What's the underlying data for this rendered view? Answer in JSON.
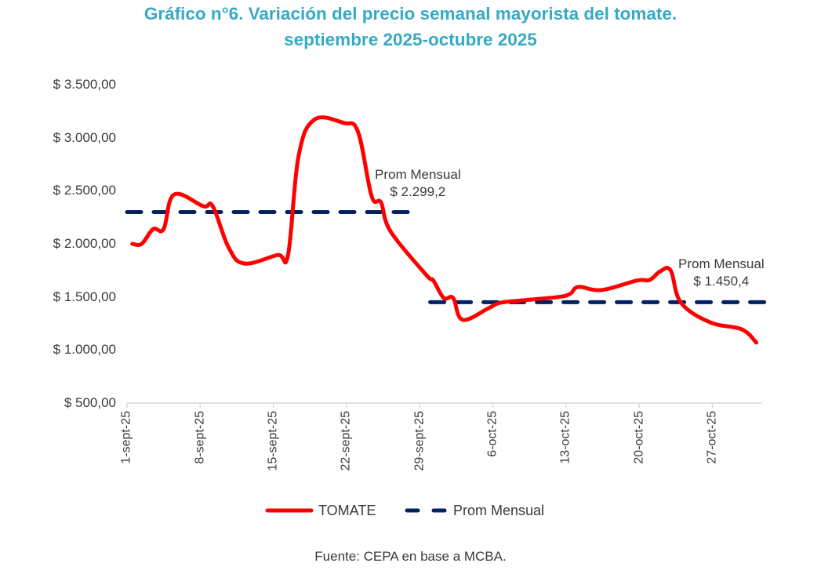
{
  "header": {
    "title_line1": "Gráfico n°6. Variación del precio semanal mayorista del tomate.",
    "title_line2": "septiembre 2025-octubre 2025"
  },
  "colors": {
    "title": "#36a9c6",
    "tomate": "#ff0000",
    "prom": "#002060",
    "axis": "#d9d9d9",
    "text": "#3a3a3a"
  },
  "chart_data": {
    "type": "line",
    "title": "Gráfico n°6. Variación del precio semanal mayorista del tomate. septiembre 2025-octubre 2025",
    "xlabel": "",
    "ylabel": "",
    "ylim": [
      500,
      3500
    ],
    "yticks": [
      3500,
      3000,
      2500,
      2000,
      1500,
      1000,
      500
    ],
    "ytick_labels": [
      "$ 3.500,00",
      "$ 3.000,00",
      "$ 2.500,00",
      "$ 2.000,00",
      "$ 1.500,00",
      "$ 1.000,00",
      "$ 500,00"
    ],
    "x_day_range": [
      1,
      62
    ],
    "xticks_day": [
      1,
      8,
      15,
      22,
      29,
      36,
      43,
      50,
      57
    ],
    "xtick_labels": [
      "1-sept-25",
      "8-sept-25",
      "15-sept-25",
      "22-sept-25",
      "29-sept-25",
      "6-oct-25",
      "13-oct-25",
      "20-oct-25",
      "27-oct-25"
    ],
    "grid": false,
    "legend_position": "bottom",
    "series": [
      {
        "name": "TOMATE",
        "style": "solid",
        "x_day": [
          1.5,
          2.4,
          3.5,
          4.5,
          5.5,
          8.3,
          9.2,
          10.7,
          12.2,
          15.4,
          16.4,
          17.4,
          18.9,
          21.7,
          23.1,
          24.4,
          25.3,
          26.2,
          29.6,
          30.3,
          31.3,
          32.2,
          33.1,
          35.6,
          36.7,
          39.1,
          42.3,
          43.4,
          44.2,
          46.4,
          49.8,
          51.0,
          52.0,
          53.0,
          54.0,
          56.8,
          59.8,
          61.2
        ],
        "values": [
          2000,
          2000,
          2140,
          2140,
          2465,
          2355,
          2355,
          1970,
          1815,
          1895,
          1895,
          2820,
          3170,
          3140,
          3055,
          2450,
          2390,
          2120,
          1710,
          1655,
          1490,
          1490,
          1285,
          1395,
          1445,
          1470,
          1500,
          1530,
          1595,
          1565,
          1655,
          1660,
          1740,
          1750,
          1445,
          1260,
          1195,
          1070
        ]
      },
      {
        "name": "Prom Mensual",
        "style": "dashed",
        "segments": [
          {
            "x_day": [
              1,
              28
            ],
            "value": 2299.2
          },
          {
            "x_day": [
              30,
              62
            ],
            "value": 1450.4
          }
        ]
      }
    ],
    "annotations": [
      {
        "line1": "Prom Mensual",
        "line2": "$ 2.299,2",
        "x_day": 26.5,
        "value": 2299.2
      },
      {
        "line1": "Prom Mensual",
        "line2": "$ 1.450,4",
        "x_day": 57.5,
        "value": 1450.4
      }
    ]
  },
  "legend": {
    "items": [
      {
        "label": "TOMATE"
      },
      {
        "label": "Prom Mensual"
      }
    ]
  },
  "footer": {
    "source": "Fuente: CEPA en base a MCBA."
  }
}
